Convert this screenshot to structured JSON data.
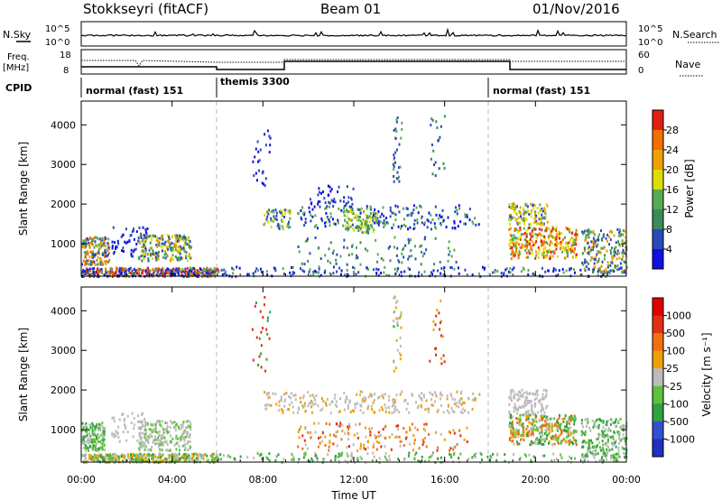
{
  "header": {
    "site": "Stokkseyri (fitACF)",
    "beam": "Beam 01",
    "date": "01/Nov/2016"
  },
  "status_panels": {
    "nsky_label": "N.Sky",
    "nsky_ticks": [
      "10^5",
      "10^0"
    ],
    "nsearch_label": "N.Search",
    "nsearch_ticks": [
      "10^5",
      "10^0"
    ],
    "freq_label_1": "Freq.",
    "freq_label_2": "[MHz]",
    "freq_ticks": [
      "18",
      "8"
    ],
    "nave_label": "Nave",
    "nave_ticks": [
      "60",
      "0"
    ],
    "cpid_label": "CPID",
    "cpid_segments": [
      {
        "label": "normal (fast) 151",
        "start_hour": 0
      },
      {
        "label": "themis 3300",
        "start_hour": 6
      },
      {
        "label": "normal (fast) 151",
        "start_hour": 18
      }
    ]
  },
  "chart_data": [
    {
      "type": "heatmap",
      "name": "power",
      "ylabel": "Slant Range [km]",
      "yticks": [
        "4000",
        "3000",
        "2000",
        "1000"
      ],
      "ylim": [
        180,
        4600
      ],
      "xlim_hours": [
        0,
        24
      ],
      "colorbar_label": "Power [dB]",
      "colorbar_ticks": [
        "28",
        "24",
        "20",
        "16",
        "12",
        "8",
        "4"
      ],
      "colorbar_colors": [
        "#1010e0",
        "#2a4ab8",
        "#3a8a5a",
        "#55aa55",
        "#dddd00",
        "#f0a000",
        "#f07000",
        "#e02010"
      ]
    },
    {
      "type": "heatmap",
      "name": "velocity",
      "ylabel": "Slant Range [km]",
      "yticks": [
        "4000",
        "3000",
        "2000",
        "1000"
      ],
      "ylim": [
        180,
        4600
      ],
      "xlim_hours": [
        0,
        24
      ],
      "xlabel": "Time UT",
      "xticks": [
        "00:00",
        "04:00",
        "08:00",
        "12:00",
        "16:00",
        "20:00",
        "00:00"
      ],
      "colorbar_label": "Velocity [m s⁻¹]",
      "colorbar_ticks": [
        "1000",
        "500",
        "100",
        "25",
        "-25",
        "-100",
        "-500",
        "-1000"
      ],
      "colorbar_colors": [
        "#2030c0",
        "#3050d0",
        "#30a040",
        "#60c040",
        "#bbbbbb",
        "#f0a000",
        "#f07010",
        "#e03010",
        "#e00000"
      ]
    }
  ]
}
